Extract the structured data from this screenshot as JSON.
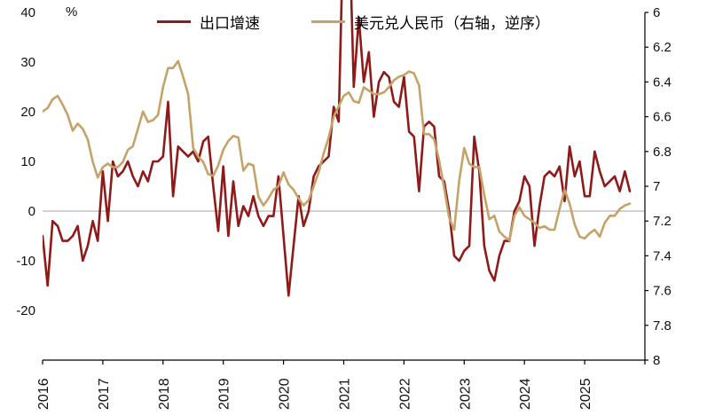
{
  "chart_data": {
    "type": "line",
    "title": "",
    "unit_label": "%",
    "background": "#ffffff",
    "zero_line": true,
    "zero_line_color": "#a6a6a6",
    "axis_color": "#000000",
    "legend_position": "top-center",
    "legend": [
      {
        "label": "出口增速",
        "color": "#8E1A1A"
      },
      {
        "label": "美元兑人民币（右轴，逆序）",
        "color": "#C5A368"
      }
    ],
    "x_tick_labels": [
      "2016",
      "2017",
      "2018",
      "2019",
      "2020",
      "2021",
      "2022",
      "2023",
      "2024",
      "2025"
    ],
    "months_per_label": 12,
    "x_total_months": 120,
    "left_axis": {
      "max": 40,
      "min_at_bottom": -30,
      "tick_step": 10,
      "tick_labels": [
        "40",
        "30",
        "20",
        "10",
        "0",
        "-10",
        "-20"
      ],
      "tick_values": [
        40,
        30,
        20,
        10,
        0,
        -10,
        -20
      ]
    },
    "right_axis": {
      "min": 6,
      "max": 8,
      "reversed": true,
      "tick_labels": [
        "6",
        "6.2",
        "6.4",
        "6.6",
        "6.8",
        "7",
        "7.2",
        "7.4",
        "7.6",
        "7.8",
        "8"
      ],
      "tick_values": [
        6,
        6.2,
        6.4,
        6.6,
        6.8,
        7,
        7.2,
        7.4,
        7.6,
        7.8,
        8
      ]
    },
    "series": [
      {
        "name": "出口增速",
        "axis": "left",
        "color": "#8E1A1A",
        "stroke_width": 2.6,
        "values": [
          -5,
          -15,
          -2,
          -3,
          -6,
          -6,
          -5,
          -3,
          -10,
          -7,
          -2,
          -6,
          8,
          -2,
          10,
          7,
          8,
          10,
          7,
          5,
          8,
          6,
          10,
          10,
          11,
          22,
          3,
          13,
          12,
          11,
          12,
          10,
          14,
          15,
          5,
          -4,
          9,
          -5,
          6,
          -3,
          1,
          -1,
          3,
          -1,
          -3,
          -1,
          -1,
          7,
          -5,
          -17,
          -7,
          3,
          -3,
          0,
          7,
          9,
          10,
          11,
          21,
          18,
          61,
          61,
          25,
          39,
          26,
          32,
          19,
          26,
          28,
          27,
          22,
          21,
          27,
          16,
          15,
          4,
          17,
          18,
          17,
          7,
          6,
          0,
          -9,
          -10,
          -8,
          -7,
          15,
          8,
          -7,
          -12,
          -14,
          -9,
          -6,
          -6,
          0,
          2,
          7,
          5,
          -7,
          1,
          7,
          8,
          7,
          9,
          2,
          13,
          7,
          10,
          3,
          3,
          12,
          8,
          5,
          6,
          7,
          4,
          8,
          4
        ]
      },
      {
        "name": "美元兑人民币（右轴，逆序）",
        "axis": "right",
        "color": "#C5A368",
        "stroke_width": 2.6,
        "values": [
          6.57,
          6.55,
          6.5,
          6.48,
          6.53,
          6.59,
          6.68,
          6.64,
          6.67,
          6.73,
          6.86,
          6.95,
          6.89,
          6.87,
          6.89,
          6.89,
          6.86,
          6.79,
          6.77,
          6.67,
          6.57,
          6.63,
          6.62,
          6.59,
          6.43,
          6.32,
          6.32,
          6.28,
          6.37,
          6.47,
          6.78,
          6.83,
          6.86,
          6.93,
          6.94,
          6.88,
          6.79,
          6.74,
          6.71,
          6.72,
          6.91,
          6.87,
          6.88,
          7.06,
          7.11,
          7.07,
          7.02,
          7.0,
          6.92,
          6.99,
          7.02,
          7.07,
          7.11,
          7.08,
          7.0,
          6.92,
          6.81,
          6.72,
          6.6,
          6.54,
          6.48,
          6.46,
          6.51,
          6.52,
          6.43,
          6.45,
          6.47,
          6.47,
          6.46,
          6.43,
          6.39,
          6.37,
          6.36,
          6.34,
          6.35,
          6.42,
          6.7,
          6.7,
          6.73,
          6.85,
          7.01,
          7.18,
          7.25,
          6.97,
          6.78,
          6.87,
          6.89,
          6.89,
          7.05,
          7.19,
          7.17,
          7.26,
          7.29,
          7.31,
          7.17,
          7.12,
          7.17,
          7.19,
          7.21,
          7.24,
          7.23,
          7.25,
          7.25,
          7.13,
          7.02,
          7.1,
          7.22,
          7.29,
          7.3,
          7.27,
          7.25,
          7.29,
          7.21,
          7.17,
          7.17,
          7.13,
          7.11,
          7.1
        ]
      }
    ]
  }
}
